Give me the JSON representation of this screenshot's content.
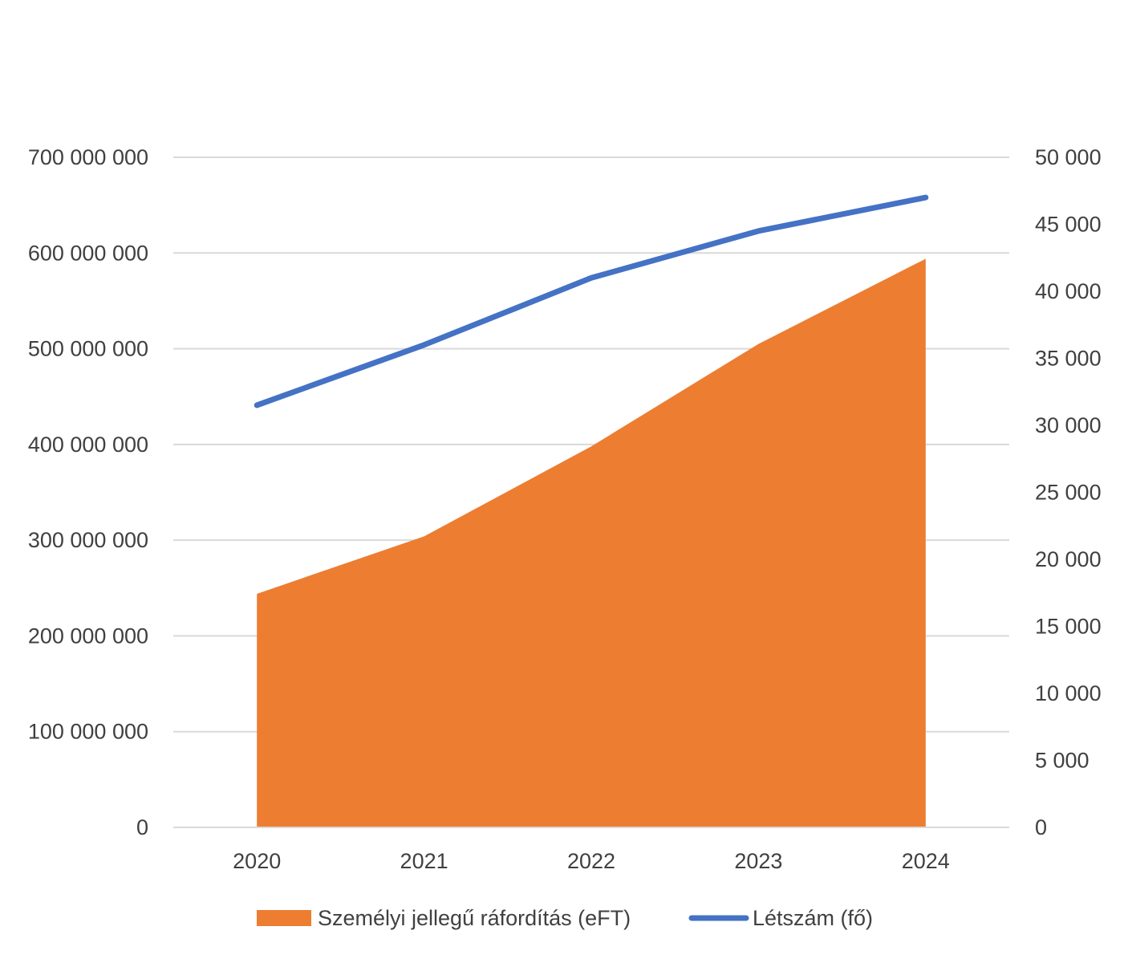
{
  "chart_data": {
    "type": "area",
    "title": "",
    "categories": [
      "2020",
      "2021",
      "2022",
      "2023",
      "2024"
    ],
    "series": [
      {
        "name": "Személyi jellegű ráfordítás (eFT)",
        "type": "area",
        "axis": "left",
        "color": "#ED7D31",
        "values": [
          244000000,
          304000000,
          398000000,
          505000000,
          594000000
        ]
      },
      {
        "name": "Létszám (fő)",
        "type": "line",
        "axis": "right",
        "color": "#4472C4",
        "values": [
          31500,
          36000,
          41000,
          44500,
          47000
        ]
      }
    ],
    "y_left": {
      "range": [
        0,
        700000000
      ],
      "ticks": [
        0,
        100000000,
        200000000,
        300000000,
        400000000,
        500000000,
        600000000,
        700000000
      ],
      "tick_labels": [
        "0",
        "100 000 000",
        "200 000 000",
        "300 000 000",
        "400 000 000",
        "500 000 000",
        "600 000 000",
        "700 000 000"
      ]
    },
    "y_right": {
      "range": [
        0,
        50000
      ],
      "ticks": [
        0,
        5000,
        10000,
        15000,
        20000,
        25000,
        30000,
        35000,
        40000,
        45000,
        50000
      ],
      "tick_labels": [
        "0",
        "5 000",
        "10 000",
        "15 000",
        "20 000",
        "25 000",
        "30 000",
        "35 000",
        "40 000",
        "45 000",
        "50 000"
      ]
    },
    "grid": true,
    "gridline_color": "#D9D9D9",
    "legend_position": "bottom"
  }
}
